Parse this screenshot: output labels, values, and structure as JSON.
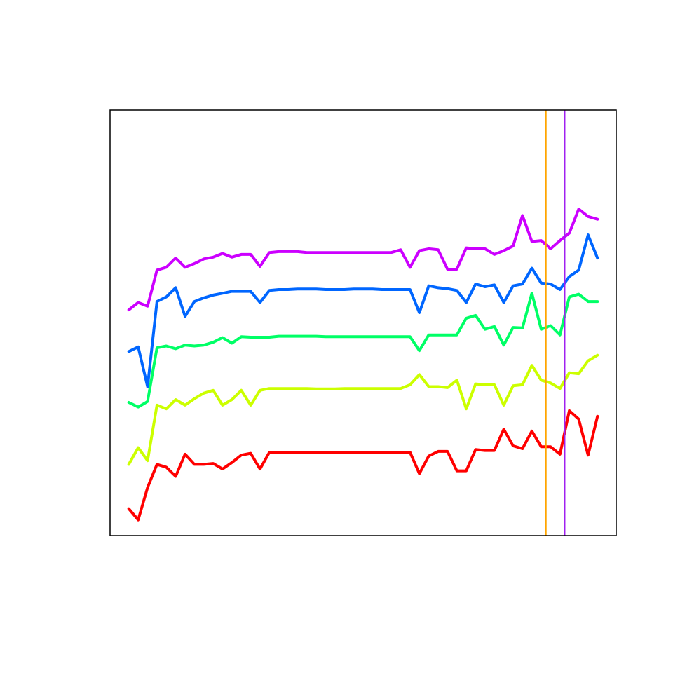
{
  "chart_data": {
    "type": "line",
    "title": "",
    "xlabel": "",
    "ylabel": "",
    "xlim": [
      -1,
      53
    ],
    "ylim": [
      -1.7,
      44.3
    ],
    "grid": false,
    "axes_shown": false,
    "x": [
      1,
      2,
      3,
      4,
      5,
      6,
      7,
      8,
      9,
      10,
      11,
      12,
      13,
      14,
      15,
      16,
      17,
      18,
      19,
      20,
      21,
      22,
      23,
      24,
      25,
      26,
      27,
      28,
      29,
      30,
      31,
      32,
      33,
      34,
      35,
      36,
      37,
      38,
      39,
      40,
      41,
      42,
      43,
      44,
      45,
      46,
      47,
      48,
      49,
      50,
      51
    ],
    "series": [
      {
        "color": "#FF0000",
        "values": [
          1.2,
          0.0,
          3.5,
          6.0,
          5.7,
          4.7,
          7.1,
          6.0,
          6.0,
          6.1,
          5.5,
          6.2,
          7.0,
          7.2,
          5.5,
          7.3,
          7.3,
          7.3,
          7.3,
          7.25,
          7.25,
          7.25,
          7.3,
          7.25,
          7.25,
          7.3,
          7.3,
          7.3,
          7.3,
          7.3,
          7.3,
          5.0,
          6.9,
          7.4,
          7.4,
          5.3,
          5.3,
          7.6,
          7.5,
          7.5,
          9.8,
          8.0,
          7.7,
          9.6,
          7.9,
          7.9,
          7.1,
          11.8,
          10.9,
          7.0,
          11.2
        ]
      },
      {
        "color": "#CCFF00",
        "values": [
          6.0,
          7.8,
          6.4,
          12.4,
          12.0,
          13.0,
          12.4,
          13.1,
          13.7,
          14.0,
          12.4,
          13.0,
          14.0,
          12.4,
          14.0,
          14.2,
          14.2,
          14.2,
          14.2,
          14.2,
          14.15,
          14.15,
          14.15,
          14.2,
          14.2,
          14.2,
          14.2,
          14.2,
          14.2,
          14.2,
          14.6,
          15.7,
          14.4,
          14.4,
          14.3,
          15.1,
          12.0,
          14.7,
          14.6,
          14.6,
          12.4,
          14.5,
          14.6,
          16.7,
          15.1,
          14.8,
          14.2,
          15.9,
          15.8,
          17.2,
          17.8
        ]
      },
      {
        "color": "#00FF66",
        "values": [
          12.7,
          12.2,
          12.8,
          18.6,
          18.8,
          18.5,
          18.9,
          18.8,
          18.9,
          19.2,
          19.7,
          19.1,
          19.8,
          19.75,
          19.75,
          19.75,
          19.85,
          19.85,
          19.85,
          19.85,
          19.85,
          19.8,
          19.8,
          19.8,
          19.8,
          19.8,
          19.8,
          19.8,
          19.8,
          19.8,
          19.8,
          18.3,
          20.0,
          20.0,
          20.0,
          20.0,
          21.8,
          22.1,
          20.6,
          20.9,
          18.9,
          20.8,
          20.75,
          24.5,
          20.6,
          21.0,
          20.0,
          24.1,
          24.4,
          23.6,
          23.6
        ]
      },
      {
        "color": "#0066FF",
        "values": [
          18.2,
          18.7,
          14.4,
          23.6,
          24.1,
          25.1,
          22.0,
          23.6,
          24.0,
          24.3,
          24.5,
          24.7,
          24.7,
          24.7,
          23.5,
          24.8,
          24.9,
          24.9,
          24.95,
          24.95,
          24.95,
          24.9,
          24.9,
          24.9,
          24.95,
          24.95,
          24.95,
          24.9,
          24.9,
          24.9,
          24.9,
          22.4,
          25.3,
          25.1,
          25.0,
          24.8,
          23.5,
          25.5,
          25.2,
          25.4,
          23.5,
          25.3,
          25.5,
          27.2,
          25.6,
          25.5,
          24.9,
          26.3,
          27.0,
          30.8,
          28.3
        ]
      },
      {
        "color": "#CC00FF",
        "values": [
          22.7,
          23.5,
          23.1,
          27.0,
          27.3,
          28.3,
          27.3,
          27.7,
          28.2,
          28.4,
          28.8,
          28.4,
          28.7,
          28.7,
          27.4,
          28.9,
          29.0,
          29.0,
          29.0,
          28.9,
          28.9,
          28.9,
          28.9,
          28.9,
          28.9,
          28.9,
          28.9,
          28.9,
          28.9,
          29.2,
          27.3,
          29.1,
          29.3,
          29.2,
          27.1,
          27.1,
          29.4,
          29.3,
          29.3,
          28.7,
          29.1,
          29.6,
          32.9,
          30.1,
          30.2,
          29.3,
          30.2,
          31.0,
          33.6,
          32.8,
          32.5
        ]
      }
    ],
    "vlines": [
      {
        "x": 45.5,
        "color": "#FFA500"
      },
      {
        "x": 47.5,
        "color": "#A020F0"
      }
    ]
  }
}
